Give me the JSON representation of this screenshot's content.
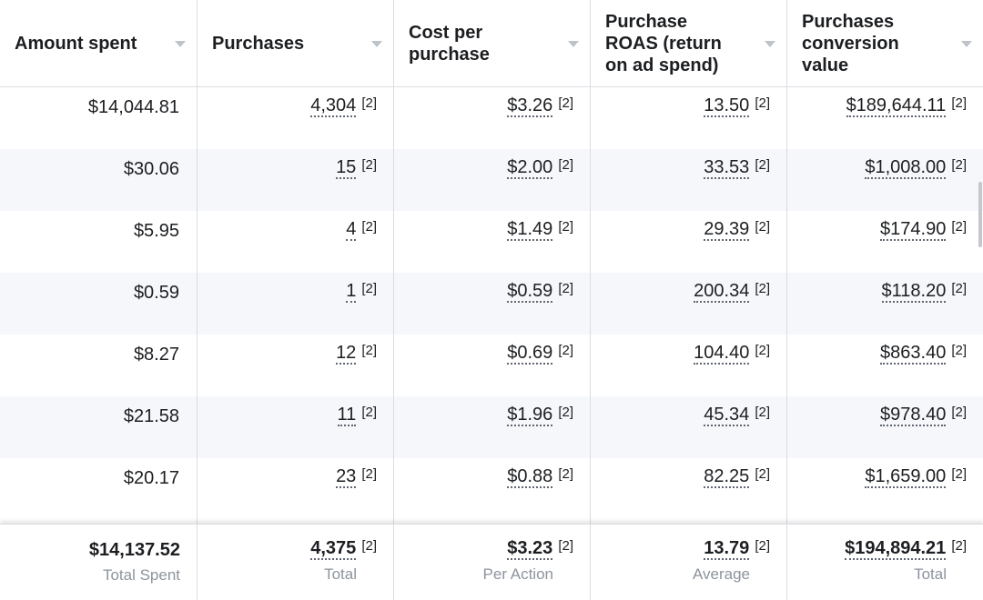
{
  "columns": [
    {
      "label": "Amount spent"
    },
    {
      "label": "Purchases"
    },
    {
      "label": "Cost per purchase"
    },
    {
      "label": "Purchase ROAS (return on ad spend)"
    },
    {
      "label": "Purchases conversion value"
    }
  ],
  "note_marker": "[2]",
  "rows": [
    {
      "spent": "$14,044.81",
      "purchases": "4,304",
      "cost": "$3.26",
      "roas": "13.50",
      "value": "$189,644.11"
    },
    {
      "spent": "$30.06",
      "purchases": "15",
      "cost": "$2.00",
      "roas": "33.53",
      "value": "$1,008.00"
    },
    {
      "spent": "$5.95",
      "purchases": "4",
      "cost": "$1.49",
      "roas": "29.39",
      "value": "$174.90"
    },
    {
      "spent": "$0.59",
      "purchases": "1",
      "cost": "$0.59",
      "roas": "200.34",
      "value": "$118.20"
    },
    {
      "spent": "$8.27",
      "purchases": "12",
      "cost": "$0.69",
      "roas": "104.40",
      "value": "$863.40"
    },
    {
      "spent": "$21.58",
      "purchases": "11",
      "cost": "$1.96",
      "roas": "45.34",
      "value": "$978.40"
    },
    {
      "spent": "$20.17",
      "purchases": "23",
      "cost": "$0.88",
      "roas": "82.25",
      "value": "$1,659.00"
    }
  ],
  "totals": {
    "spent": {
      "value": "$14,137.52",
      "label": "Total Spent"
    },
    "purchases": {
      "value": "4,375",
      "label": "Total"
    },
    "cost": {
      "value": "$3.23",
      "label": "Per Action"
    },
    "roas": {
      "value": "13.79",
      "label": "Average"
    },
    "value": {
      "value": "$194,894.21",
      "label": "Total"
    }
  },
  "colors": {
    "alt_row": "#f5f7fa",
    "border": "#dadde1",
    "caret": "#bec3c9",
    "muted_text": "#8d949e"
  }
}
